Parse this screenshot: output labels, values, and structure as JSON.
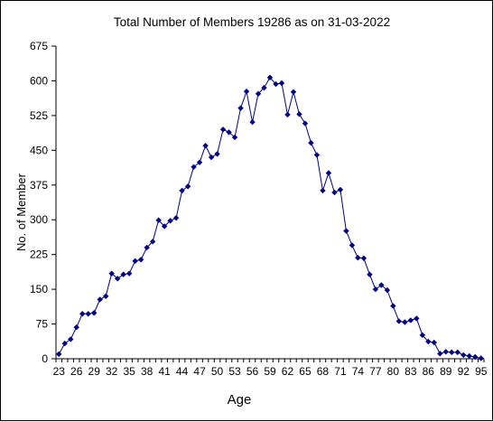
{
  "chart_data": {
    "type": "line",
    "title": "Total Number of Members 19286 as on 31-03-2022",
    "xlabel": "Age",
    "ylabel": "No. of Member",
    "ylim": [
      0,
      675
    ],
    "yticks": [
      0,
      75,
      150,
      225,
      300,
      375,
      450,
      525,
      600,
      675
    ],
    "x_tick_labels": [
      23,
      26,
      29,
      32,
      35,
      38,
      41,
      44,
      47,
      50,
      53,
      56,
      59,
      62,
      65,
      68,
      71,
      74,
      77,
      80,
      83,
      86,
      89,
      92,
      95
    ],
    "grid": false,
    "legend": "none",
    "series_color": "#000080",
    "x": [
      23,
      24,
      25,
      26,
      27,
      28,
      29,
      30,
      31,
      32,
      33,
      34,
      35,
      36,
      37,
      38,
      39,
      40,
      41,
      42,
      43,
      44,
      45,
      46,
      47,
      48,
      49,
      50,
      51,
      52,
      53,
      54,
      55,
      56,
      57,
      58,
      59,
      60,
      61,
      62,
      63,
      64,
      65,
      66,
      67,
      68,
      69,
      70,
      71,
      72,
      73,
      74,
      75,
      76,
      77,
      78,
      79,
      80,
      81,
      82,
      83,
      84,
      85,
      86,
      87,
      88,
      89,
      90,
      91,
      92,
      93,
      94,
      95
    ],
    "series": [
      {
        "values": [
          10,
          33,
          42,
          68,
          97,
          97,
          99,
          128,
          135,
          184,
          173,
          182,
          184,
          211,
          214,
          240,
          253,
          299,
          286,
          298,
          304,
          363,
          372,
          414,
          424,
          460,
          435,
          442,
          495,
          489,
          478,
          541,
          577,
          511,
          572,
          585,
          607,
          593,
          595,
          527,
          576,
          528,
          508,
          466,
          440,
          363,
          401,
          359,
          365,
          276,
          245,
          218,
          217,
          182,
          150,
          159,
          148,
          114,
          81,
          79,
          83,
          87,
          51,
          37,
          35,
          11,
          15,
          14,
          14,
          8,
          6,
          4,
          1
        ]
      }
    ]
  }
}
